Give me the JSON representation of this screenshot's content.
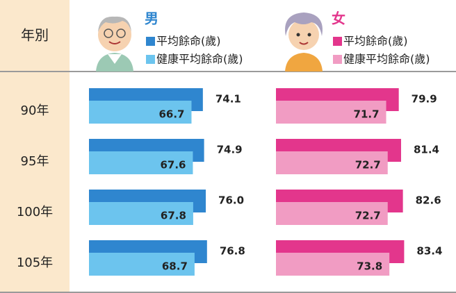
{
  "chart_data": {
    "type": "bar",
    "orientation": "horizontal",
    "category_header": "年別",
    "categories": [
      "90年",
      "95年",
      "100年",
      "105年"
    ],
    "xlim": [
      0,
      90
    ],
    "panels": [
      {
        "title": "男",
        "title_color": "#2f86cf",
        "series": [
          {
            "name": "平均餘命(歲)",
            "color": "#2f86cf",
            "values": [
              74.1,
              74.9,
              76.0,
              76.8
            ],
            "value_labels": [
              "74.1",
              "74.9",
              "76.0",
              "76.8"
            ]
          },
          {
            "name": "健康平均餘命(歲)",
            "color": "#6cc4ee",
            "values": [
              66.7,
              67.6,
              67.8,
              68.7
            ],
            "value_labels": [
              "66.7",
              "67.6",
              "67.8",
              "68.7"
            ]
          }
        ]
      },
      {
        "title": "女",
        "title_color": "#e3368c",
        "series": [
          {
            "name": "平均餘命(歲)",
            "color": "#e3368c",
            "values": [
              79.9,
              81.4,
              82.6,
              83.4
            ],
            "value_labels": [
              "79.9",
              "81.4",
              "82.6",
              "83.4"
            ]
          },
          {
            "name": "健康平均餘命(歲)",
            "color": "#f19cc3",
            "values": [
              71.7,
              72.7,
              72.7,
              73.8
            ],
            "value_labels": [
              "71.7",
              "72.7",
              "72.7",
              "73.8"
            ]
          }
        ]
      }
    ]
  }
}
